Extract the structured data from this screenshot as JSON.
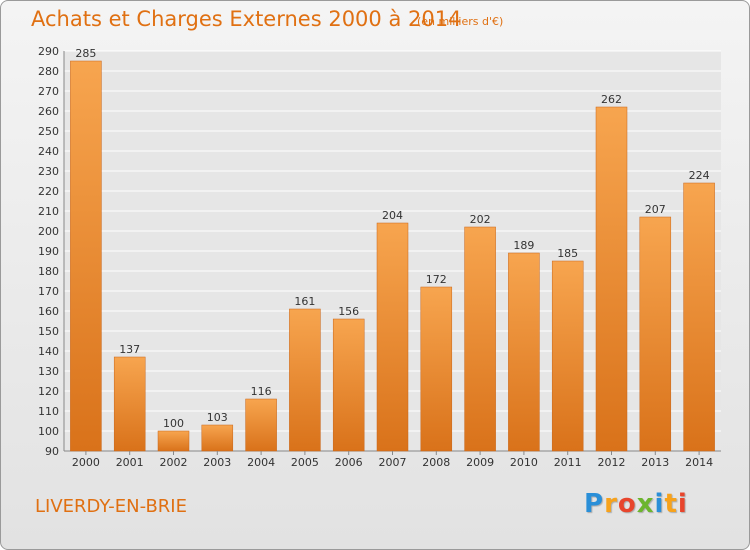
{
  "header": {
    "title": "Achats et Charges Externes 2000 à 2014",
    "subtitle": "(en milliers d'€)"
  },
  "footer": {
    "commune": "LIVERDY-EN-BRIE",
    "logo_letters": [
      "P",
      "r",
      "o",
      "x",
      "i",
      "t",
      "i"
    ],
    "logo_colors": [
      "#2a8fd8",
      "#f7a21b",
      "#e8452c",
      "#6cb52d",
      "#2a8fd8",
      "#f7a21b",
      "#e8452c"
    ]
  },
  "colors": {
    "accent": "#e07012",
    "bar_light": "#f7a54f",
    "bar_dark": "#d9721a",
    "grid": "#ffffff"
  },
  "chart_data": {
    "type": "bar",
    "categories": [
      "2000",
      "2001",
      "2002",
      "2003",
      "2004",
      "2005",
      "2006",
      "2007",
      "2008",
      "2009",
      "2010",
      "2011",
      "2012",
      "2013",
      "2014"
    ],
    "values": [
      285,
      137,
      100,
      103,
      116,
      161,
      156,
      204,
      172,
      202,
      189,
      185,
      262,
      207,
      224
    ],
    "ylim": [
      90,
      290
    ],
    "yticks": [
      90,
      100,
      110,
      120,
      130,
      140,
      150,
      160,
      170,
      180,
      190,
      200,
      210,
      220,
      230,
      240,
      250,
      260,
      270,
      280,
      290
    ],
    "grid": true,
    "data_labels": true
  }
}
